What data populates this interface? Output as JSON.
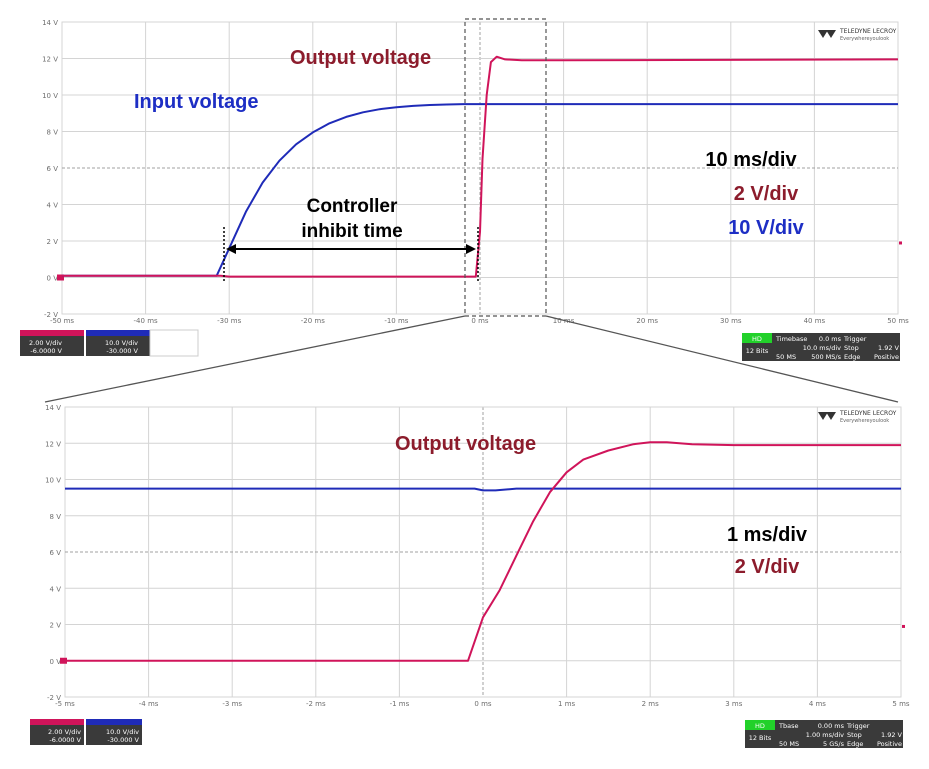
{
  "chart_data": [
    {
      "type": "line",
      "title": "",
      "xlabel": "",
      "ylabel": "",
      "xlim": [
        -50,
        50
      ],
      "ylim": [
        -2,
        14
      ],
      "x_unit": "ms",
      "x_tick_labels": [
        "-50 ms",
        "-40 ms",
        "-30 ms",
        "-20 ms",
        "-10 ms",
        "0 ms",
        "10 ms",
        "20 ms",
        "30 ms",
        "40 ms",
        "50 ms"
      ],
      "y_tick_labels": [
        "14 V",
        "12 V",
        "10 V",
        "8 V",
        "6 V",
        "4 V",
        "2 V",
        "0 V",
        "-2 V"
      ],
      "grid": true,
      "series": [
        {
          "name": "Input voltage",
          "color": "#1f2bb8",
          "x": [
            -50,
            -31.5,
            -30,
            -28,
            -26,
            -24,
            -22,
            -20,
            -18,
            -16,
            -14,
            -12,
            -10,
            -8,
            -6,
            -4,
            -2,
            0,
            50
          ],
          "y": [
            0.1,
            0.1,
            1.6,
            3.6,
            5.2,
            6.4,
            7.3,
            7.95,
            8.45,
            8.8,
            9.05,
            9.22,
            9.33,
            9.4,
            9.45,
            9.48,
            9.5,
            9.5,
            9.5
          ]
        },
        {
          "name": "Output voltage",
          "color": "#d0145a",
          "x": [
            -50,
            -31,
            -30,
            -0.5,
            0,
            0.3,
            0.8,
            1.3,
            2,
            3,
            5,
            10,
            50
          ],
          "y": [
            0.1,
            0.1,
            0.05,
            0.05,
            2.5,
            6.5,
            10,
            11.8,
            12.1,
            11.95,
            11.9,
            11.9,
            11.95
          ]
        }
      ],
      "annotations": {
        "output_label": "Output voltage",
        "input_label": "Input voltage",
        "inhibit_line1": "Controller",
        "inhibit_line2": "inhibit time",
        "timebase": "10 ms/div",
        "output_scale": "2 V/div",
        "input_scale": "10 V/div"
      },
      "inhibit_interval_ms": [
        -30.5,
        0
      ],
      "zoom_window_ms": [
        -2,
        8
      ]
    },
    {
      "type": "line",
      "title": "",
      "xlabel": "",
      "ylabel": "",
      "xlim": [
        -5,
        5
      ],
      "ylim": [
        -2,
        14
      ],
      "x_unit": "ms",
      "x_tick_labels": [
        "-5 ms",
        "-4 ms",
        "-3 ms",
        "-2 ms",
        "-1 ms",
        "0 ms",
        "1 ms",
        "2 ms",
        "3 ms",
        "4 ms",
        "5 ms"
      ],
      "y_tick_labels": [
        "14 V",
        "12 V",
        "10 V",
        "8 V",
        "6 V",
        "4 V",
        "2 V",
        "0 V",
        "-2 V"
      ],
      "grid": true,
      "series": [
        {
          "name": "Input voltage",
          "color": "#1f2bb8",
          "x": [
            -5,
            -0.1,
            0,
            0.15,
            0.4,
            5
          ],
          "y": [
            9.5,
            9.5,
            9.4,
            9.4,
            9.5,
            9.5
          ]
        },
        {
          "name": "Output voltage",
          "color": "#d0145a",
          "x": [
            -5,
            -0.18,
            0,
            0.2,
            0.4,
            0.6,
            0.8,
            1.0,
            1.2,
            1.5,
            1.8,
            2.0,
            2.2,
            2.5,
            3.0,
            5.0
          ],
          "y": [
            0,
            0,
            2.4,
            3.9,
            5.8,
            7.7,
            9.3,
            10.4,
            11.1,
            11.6,
            11.95,
            12.05,
            12.05,
            11.95,
            11.9,
            11.9
          ]
        }
      ],
      "annotations": {
        "output_label": "Output voltage",
        "timebase": "1 ms/div",
        "output_scale": "2 V/div"
      }
    }
  ],
  "scope_panels": {
    "top": {
      "ch_output": {
        "line1": "2.00 V/div",
        "line2": "-6.0000 V"
      },
      "ch_input": {
        "line1": "10.0 V/div",
        "line2": "-30.000 V"
      },
      "trigger": {
        "hd": "HD",
        "bits": "12 Bits",
        "tb_label": "Timebase",
        "tb_val": "0.0 ms",
        "trig_label": "Trigger",
        "div": "10.0 ms/div",
        "stop": "Stop",
        "lvl": "1.92 V",
        "samples": "50 MS",
        "rate": "500 MS/s",
        "edge": "Edge",
        "slope": "Positive"
      }
    },
    "bottom": {
      "ch_output": {
        "line1": "2.00 V/div",
        "line2": "-6.0000 V"
      },
      "ch_input": {
        "line1": "10.0 V/div",
        "line2": "-30.000 V"
      },
      "trigger": {
        "hd": "HD",
        "bits": "12 Bits",
        "tb_label": "Tbase",
        "tb_val": "0.00 ms",
        "trig_label": "Trigger",
        "div": "1.00 ms/div",
        "stop": "Stop",
        "lvl": "1.92 V",
        "samples": "50 MS",
        "rate": "5 GS/s",
        "edge": "Edge",
        "slope": "Positive"
      }
    }
  },
  "logo": {
    "brand": "TELEDYNE LECROY",
    "tagline": "Everywhereyoulook"
  },
  "colors": {
    "output": "#d0145a",
    "input": "#1f2bb8",
    "output_label": "#8c1c2c",
    "input_label": "#1d2ec4",
    "hd_green": "#22d12a"
  }
}
